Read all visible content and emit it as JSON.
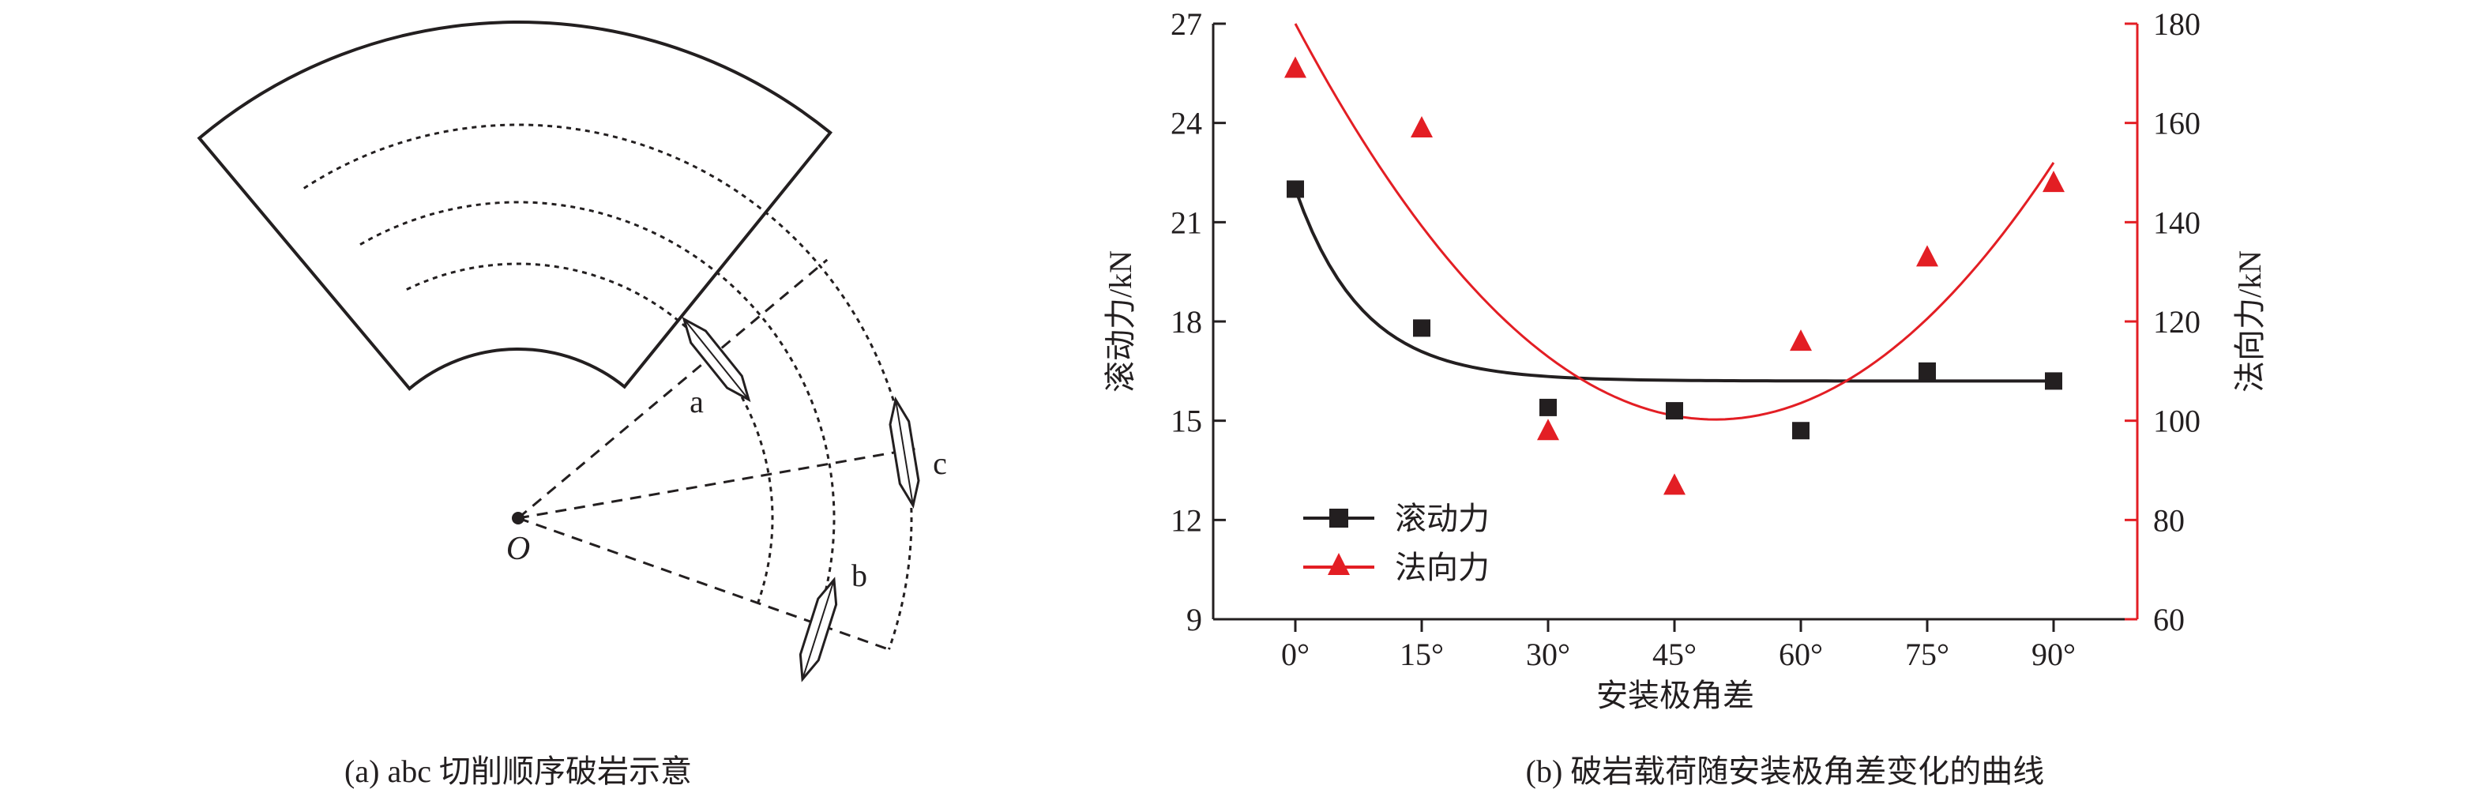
{
  "diagram": {
    "caption": "(a) abc 切削顺序破岩示意",
    "labels": {
      "a": "a",
      "b": "b",
      "c": "c",
      "origin": "O"
    }
  },
  "chart_data": {
    "type": "scatter",
    "caption": "(b) 破岩载荷随安装极角差变化的曲线",
    "xlabel": "安装极角差",
    "ylabel_left": "滚动力/kN",
    "ylabel_right": "法向力/kN",
    "categories": [
      "0°",
      "15°",
      "30°",
      "45°",
      "60°",
      "75°",
      "90°"
    ],
    "x": [
      0,
      15,
      30,
      45,
      60,
      75,
      90
    ],
    "xlim": [
      -7,
      101
    ],
    "ylim_left": [
      9,
      27
    ],
    "yticks_left": [
      9,
      12,
      15,
      18,
      21,
      24,
      27
    ],
    "ylim_right": [
      60,
      180
    ],
    "yticks_right": [
      60,
      80,
      100,
      120,
      140,
      160,
      180
    ],
    "legend_position": "bottom-left",
    "series": [
      {
        "name": "滚动力",
        "axis": "left",
        "marker": "square",
        "color": "#231f20",
        "values": [
          22.0,
          17.8,
          15.4,
          15.3,
          14.7,
          16.5,
          16.2
        ],
        "fit": {
          "kind": "exponential-decay",
          "asymptote": 16.2,
          "amplitude": 5.8,
          "scale": 8
        }
      },
      {
        "name": "法向力",
        "axis": "right",
        "marker": "triangle",
        "color": "#e31e24",
        "values": [
          171,
          159,
          98,
          87,
          116,
          133,
          148
        ],
        "fit": {
          "kind": "quadratic",
          "c0": 180,
          "c1": -3.2,
          "c2": 0.0321
        }
      }
    ]
  }
}
